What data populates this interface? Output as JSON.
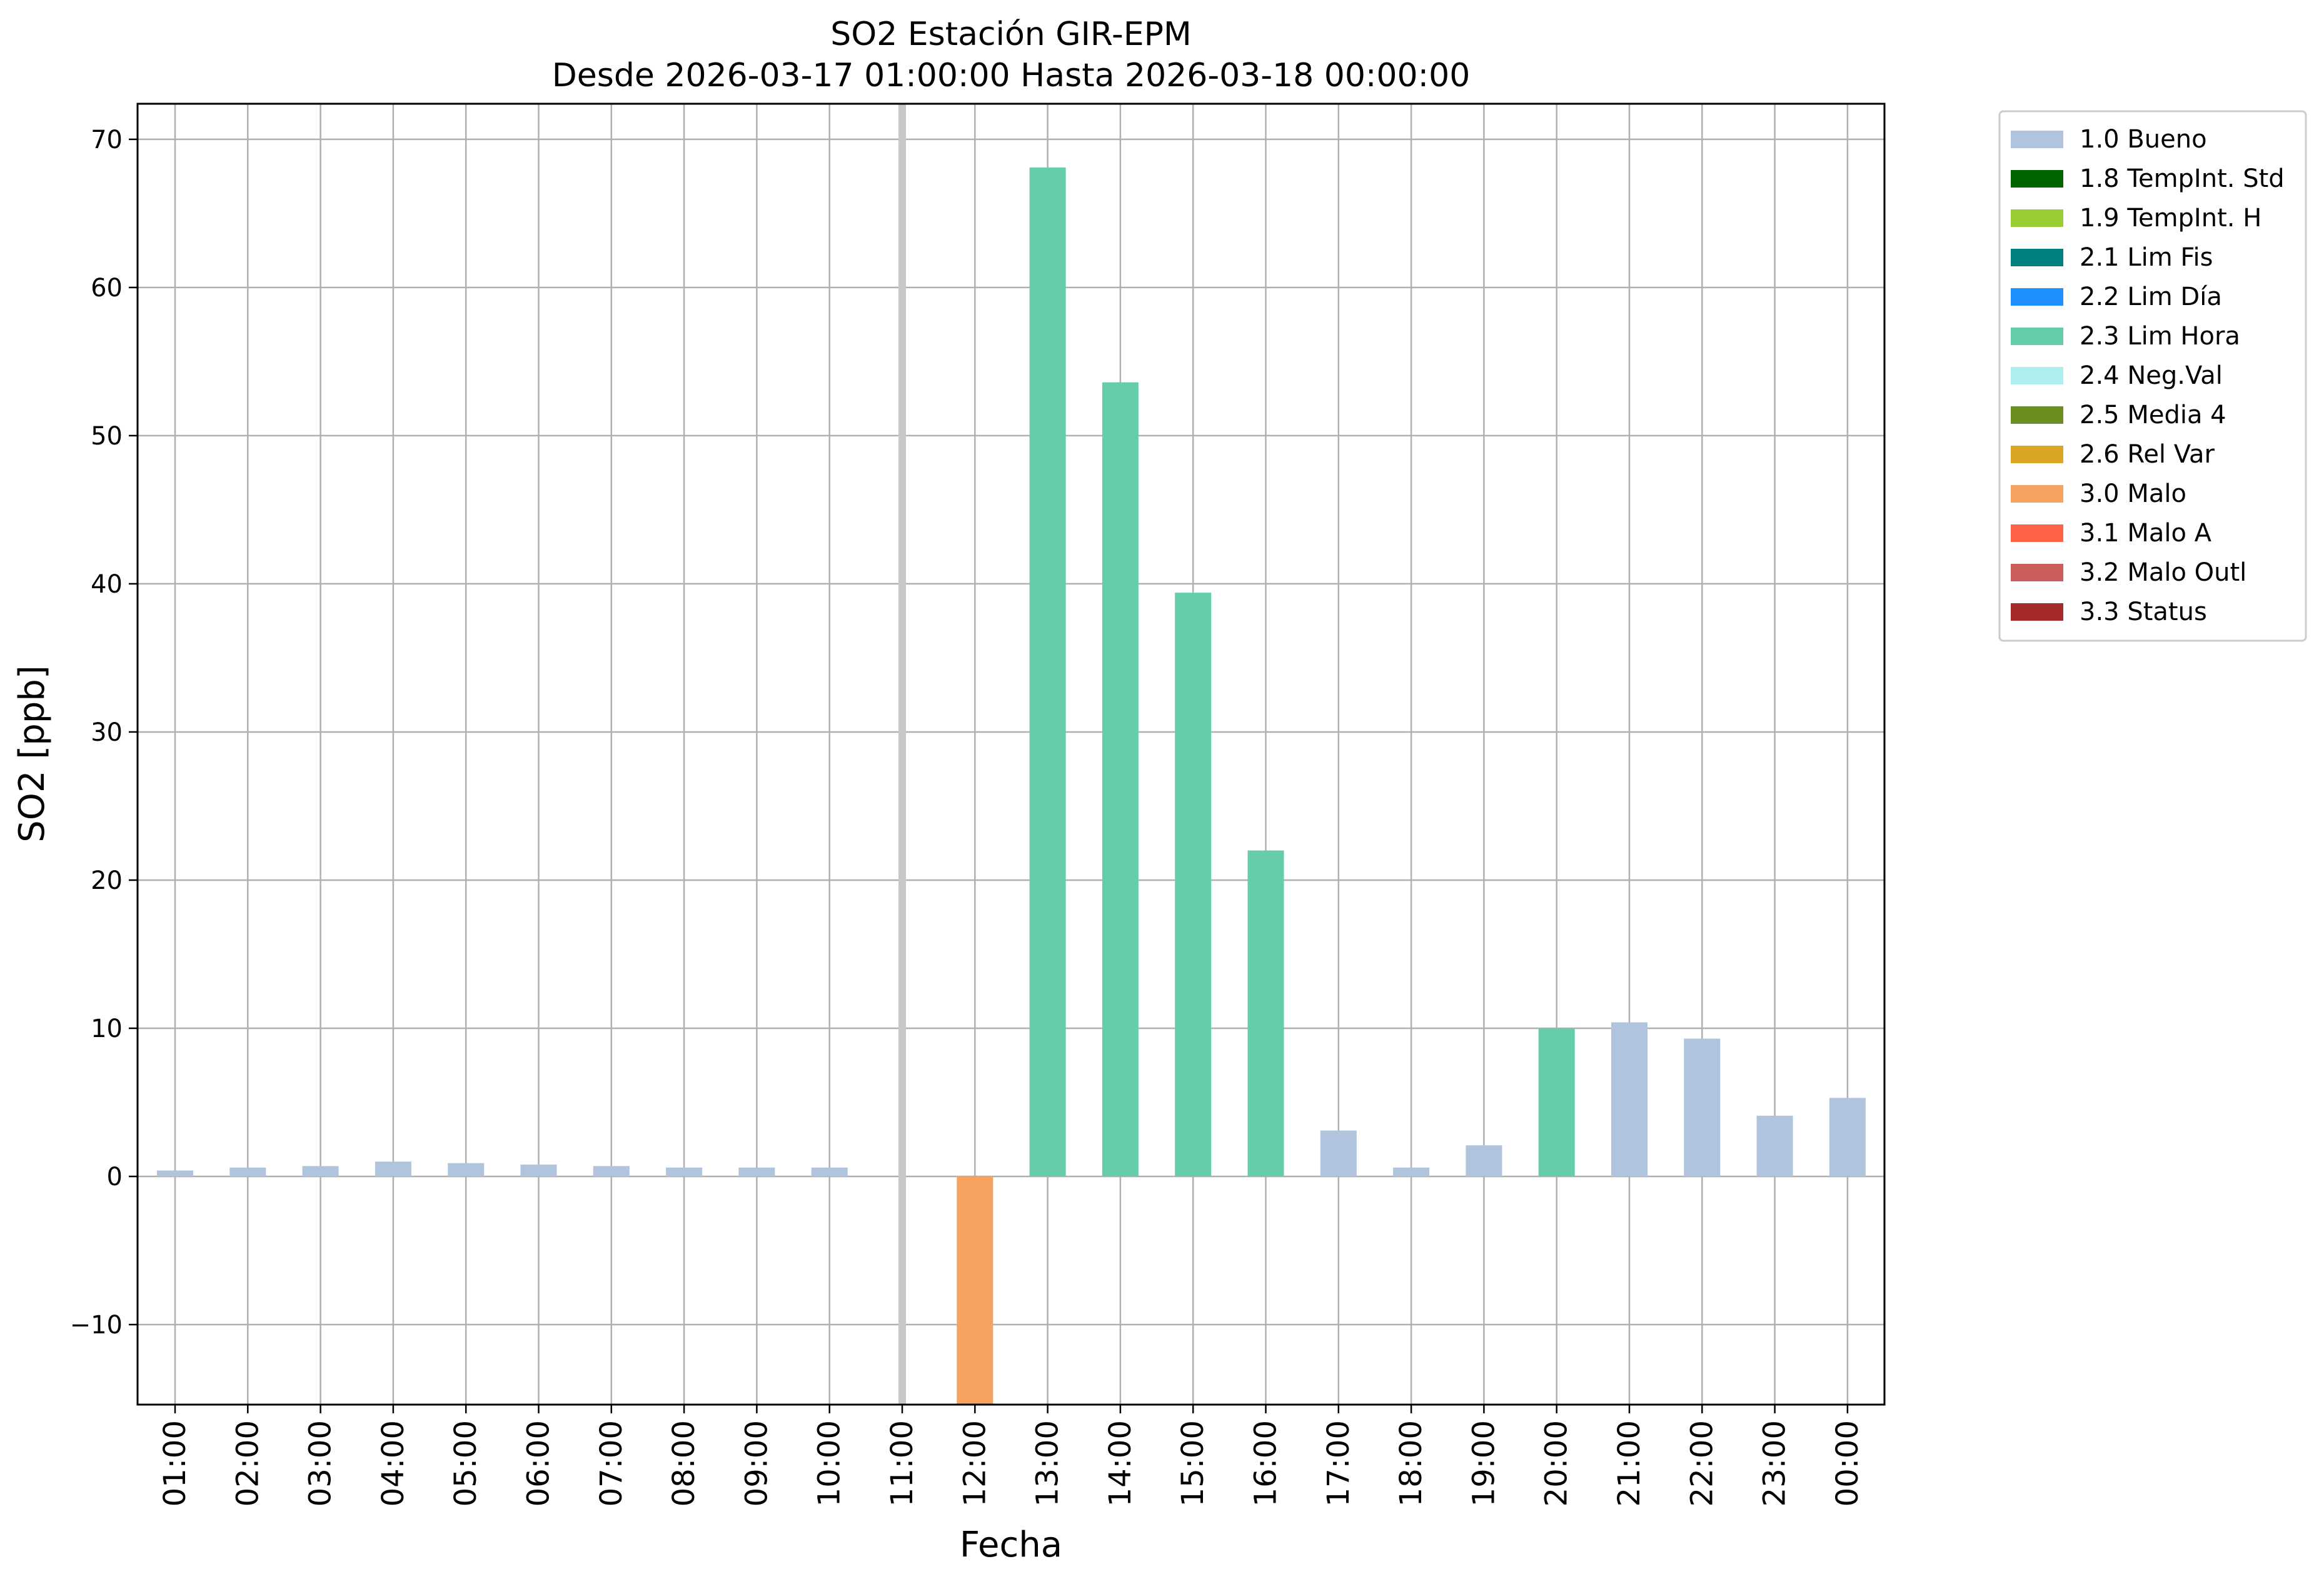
{
  "chart_data": {
    "type": "bar",
    "title": "SO2 Estación GIR-EPM",
    "subtitle": "Desde 2026-03-17 01:00:00 Hasta 2026-03-18 00:00:00",
    "xlabel": "Fecha",
    "ylabel": "SO2 [ppb]",
    "ylim": [
      -15.4,
      72.4
    ],
    "yticks": [
      -10,
      0,
      10,
      20,
      30,
      40,
      50,
      60,
      70
    ],
    "grid": true,
    "legend_position": "outside-top-right",
    "categories": [
      "01:00",
      "02:00",
      "03:00",
      "04:00",
      "05:00",
      "06:00",
      "07:00",
      "08:00",
      "09:00",
      "10:00",
      "11:00",
      "12:00",
      "13:00",
      "14:00",
      "15:00",
      "16:00",
      "17:00",
      "18:00",
      "19:00",
      "20:00",
      "21:00",
      "22:00",
      "23:00",
      "00:00"
    ],
    "values": [
      0.4,
      0.6,
      0.7,
      1.0,
      0.9,
      0.8,
      0.7,
      0.6,
      0.6,
      0.6,
      null,
      -15.4,
      68.1,
      53.6,
      39.4,
      22.0,
      3.1,
      0.6,
      2.1,
      10.0,
      10.4,
      9.3,
      4.1,
      5.3
    ],
    "flags": [
      "1.0 Bueno",
      "1.0 Bueno",
      "1.0 Bueno",
      "1.0 Bueno",
      "1.0 Bueno",
      "1.0 Bueno",
      "1.0 Bueno",
      "1.0 Bueno",
      "1.0 Bueno",
      "1.0 Bueno",
      null,
      "3.0 Malo",
      "2.3 Lim Hora",
      "2.3 Lim Hora",
      "2.3 Lim Hora",
      "2.3 Lim Hora",
      "1.0 Bueno",
      "1.0 Bueno",
      "1.0 Bueno",
      "2.3 Lim Hora",
      "1.0 Bueno",
      "1.0 Bueno",
      "1.0 Bueno",
      "1.0 Bueno"
    ],
    "missing_marker_index": 10,
    "missing_marker_color": "#c8c8c8",
    "legend": [
      {
        "name": "1.0 Bueno",
        "color": "#b0c4de"
      },
      {
        "name": "1.8 TempInt. Std",
        "color": "#006400"
      },
      {
        "name": "1.9 TempInt. H",
        "color": "#9acd32"
      },
      {
        "name": "2.1 Lim Fis",
        "color": "#008080"
      },
      {
        "name": "2.2 Lim Día",
        "color": "#1e90ff"
      },
      {
        "name": "2.3 Lim Hora",
        "color": "#66cdaa"
      },
      {
        "name": "2.4 Neg.Val",
        "color": "#afeeee"
      },
      {
        "name": "2.5 Media 4",
        "color": "#6b8e23"
      },
      {
        "name": "2.6 Rel Var",
        "color": "#daa520"
      },
      {
        "name": "3.0 Malo",
        "color": "#f4a460"
      },
      {
        "name": "3.1 Malo A",
        "color": "#ff6347"
      },
      {
        "name": "3.2 Malo Outl",
        "color": "#cd5c5c"
      },
      {
        "name": "3.3 Status",
        "color": "#a52a2a"
      }
    ]
  }
}
